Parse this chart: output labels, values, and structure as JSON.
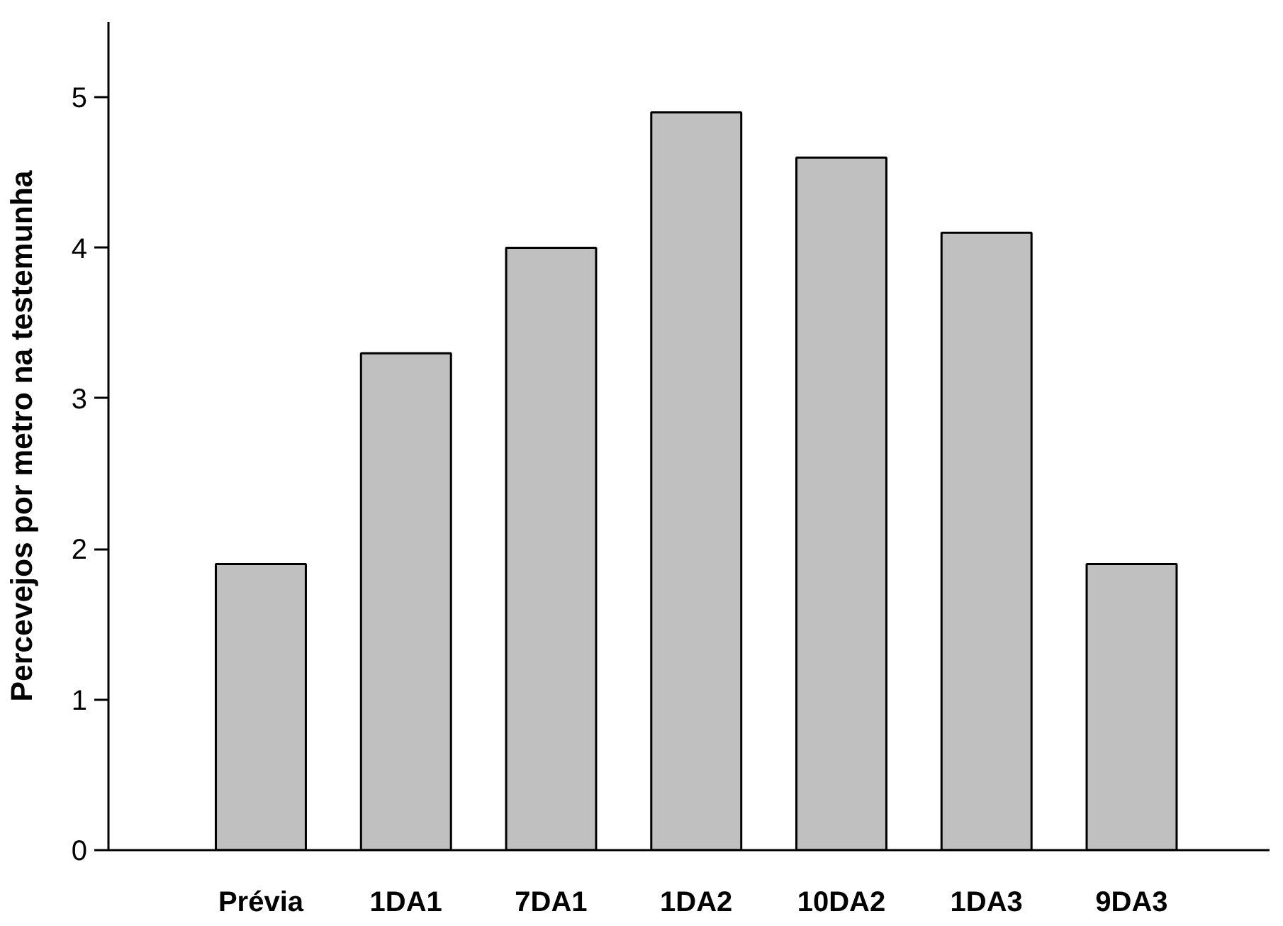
{
  "chart_data": {
    "type": "bar",
    "ylabel": "Percevejos por metro na testemunha",
    "categories": [
      "Prévia",
      "1DA1",
      "7DA1",
      "1DA2",
      "10DA2",
      "1DA3",
      "9DA3"
    ],
    "values": [
      1.9,
      3.3,
      4.0,
      4.9,
      4.6,
      4.1,
      1.9
    ],
    "color": "#c0c0c0",
    "ylim": [
      0,
      5.5
    ],
    "yticks": [
      0,
      1,
      2,
      3,
      4,
      5
    ],
    "grid": false
  }
}
